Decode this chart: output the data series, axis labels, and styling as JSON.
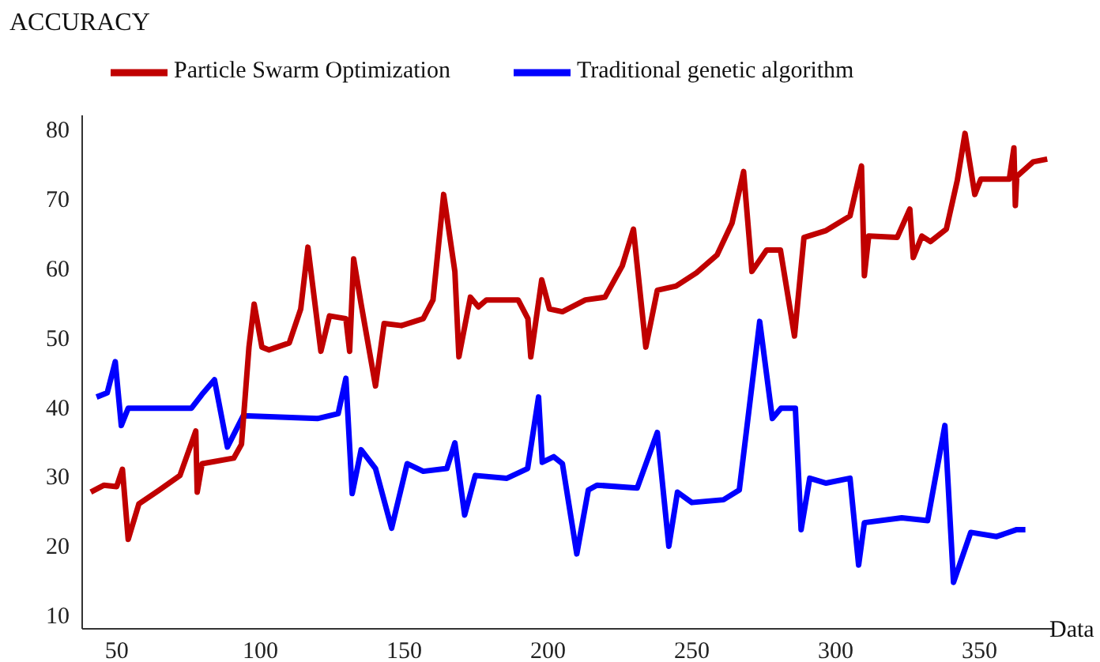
{
  "chart_data": {
    "type": "line",
    "xlabel": "Data",
    "ylabel": "ACCURACY",
    "xlim": [
      38,
      376
    ],
    "ylim": [
      8,
      82
    ],
    "xticks": [
      50,
      100,
      150,
      200,
      250,
      300,
      350
    ],
    "yticks": [
      10,
      20,
      30,
      40,
      50,
      60,
      70,
      80
    ],
    "grid": false,
    "legend": "top left",
    "marker": "none",
    "line_style": "solid",
    "series": [
      {
        "name": "Traditional genetic algorithm",
        "color": "#0000ff",
        "x": [
          43,
          46.7,
          49.5,
          51.6,
          54,
          76,
          79.7,
          84,
          88.5,
          94,
          119.8,
          127,
          129.7,
          131.9,
          135,
          140,
          145.6,
          151,
          156.6,
          164.8,
          167.6,
          171,
          174.7,
          185.7,
          192.9,
          196.7,
          198,
          202,
          205,
          210,
          214,
          217,
          231,
          238,
          242,
          245,
          250,
          261,
          266.5,
          273.6,
          278,
          281,
          286,
          288,
          291,
          296.7,
          305,
          308,
          310,
          323,
          332,
          338,
          341,
          347,
          356,
          363,
          366
        ],
        "values": [
          41.4,
          42,
          46.5,
          37.3,
          39.8,
          39.8,
          41.8,
          43.9,
          34.2,
          38.7,
          38.3,
          39,
          44.1,
          27.5,
          33.8,
          31.1,
          22.5,
          31.8,
          30.7,
          31.1,
          34.8,
          24.4,
          30.1,
          29.7,
          31.1,
          41.4,
          32,
          32.8,
          31.8,
          18.8,
          28,
          28.7,
          28.3,
          36.3,
          19.9,
          27.7,
          26.2,
          26.6,
          28,
          52.3,
          38.3,
          39.8,
          39.8,
          22.3,
          29.7,
          29,
          29.7,
          17.2,
          23.3,
          24,
          23.6,
          37.3,
          14.7,
          21.9,
          21.3,
          22.3,
          22.3
        ]
      },
      {
        "name": "Particle Swarm Optimization",
        "color": "#c00000",
        "x": [
          41,
          45.6,
          50,
          52,
          54,
          57.7,
          64.8,
          72,
          77.5,
          78,
          79.7,
          90.7,
          93.4,
          96,
          97.8,
          100.5,
          103,
          110,
          114,
          116.5,
          121,
          124,
          129.7,
          131,
          132.4,
          135,
          140,
          143,
          149,
          156.6,
          160,
          163.7,
          167.6,
          169,
          173,
          175.8,
          178.6,
          189.6,
          193,
          194,
          197.8,
          200.5,
          205,
          213,
          219.8,
          225.8,
          229.7,
          234,
          238,
          244.5,
          251.6,
          258.8,
          264,
          268,
          270.9,
          276,
          280.8,
          285.7,
          289,
          296.7,
          305,
          309,
          310,
          311.5,
          321.4,
          325.8,
          327,
          330,
          333,
          338.5,
          342.3,
          345,
          348.4,
          350.5,
          360.4,
          362,
          362.5,
          363,
          368.7,
          373.6
        ],
        "values": [
          27.7,
          28.7,
          28.5,
          31,
          20.9,
          26,
          28,
          30.1,
          36.5,
          27.7,
          31.8,
          32.6,
          34.6,
          48.6,
          54.8,
          48.6,
          48.2,
          49.2,
          54.1,
          63,
          48,
          53.1,
          52.7,
          48,
          61.3,
          54.8,
          43,
          52,
          51.7,
          52.7,
          55.4,
          70.6,
          59.5,
          47.2,
          55.8,
          54.4,
          55.4,
          55.4,
          52.7,
          47.2,
          58.3,
          54.1,
          53.7,
          55.4,
          55.8,
          60.3,
          65.6,
          48.6,
          56.8,
          57.4,
          59.3,
          61.9,
          66.5,
          73.9,
          59.5,
          62.6,
          62.6,
          50.2,
          64.4,
          65.4,
          67.5,
          74.7,
          58.9,
          64.6,
          64.4,
          68.5,
          61.5,
          64.6,
          63.8,
          65.6,
          72.6,
          79.4,
          70.6,
          72.8,
          72.8,
          77.3,
          69,
          73.2,
          75.3,
          75.7
        ]
      }
    ]
  }
}
